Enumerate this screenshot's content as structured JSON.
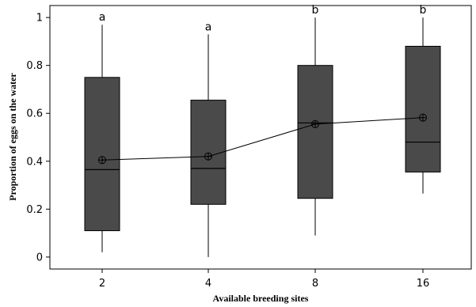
{
  "chart_data": {
    "type": "boxplot",
    "xlabel": "Available breeding sites",
    "ylabel": "Proportion of eggs on the water",
    "categories": [
      "2",
      "4",
      "8",
      "16"
    ],
    "ylim": [
      -0.05,
      1.05
    ],
    "yticks": [
      0,
      0.2,
      0.4,
      0.6,
      0.8,
      1
    ],
    "ytick_labels": [
      "0",
      "0.2",
      "0.4",
      "0.6",
      "0.8",
      "1"
    ],
    "boxes": [
      {
        "category": "2",
        "whisker_low": 0.02,
        "q1": 0.11,
        "median": 0.365,
        "q3": 0.75,
        "whisker_high": 0.97,
        "mean": 0.405,
        "group": "a"
      },
      {
        "category": "4",
        "whisker_low": 0.0,
        "q1": 0.22,
        "median": 0.37,
        "q3": 0.655,
        "whisker_high": 0.93,
        "mean": 0.42,
        "group": "a"
      },
      {
        "category": "8",
        "whisker_low": 0.09,
        "q1": 0.245,
        "median": 0.56,
        "q3": 0.8,
        "whisker_high": 1.0,
        "mean": 0.555,
        "group": "b"
      },
      {
        "category": "16",
        "whisker_low": 0.265,
        "q1": 0.355,
        "median": 0.48,
        "q3": 0.88,
        "whisker_high": 1.0,
        "mean": 0.582,
        "group": "b"
      }
    ],
    "mean_line": true,
    "grid": false,
    "colors": {
      "box_fill": "#4a4a4a",
      "stroke": "#000000",
      "median": "#000000",
      "background": "#ffffff"
    }
  }
}
